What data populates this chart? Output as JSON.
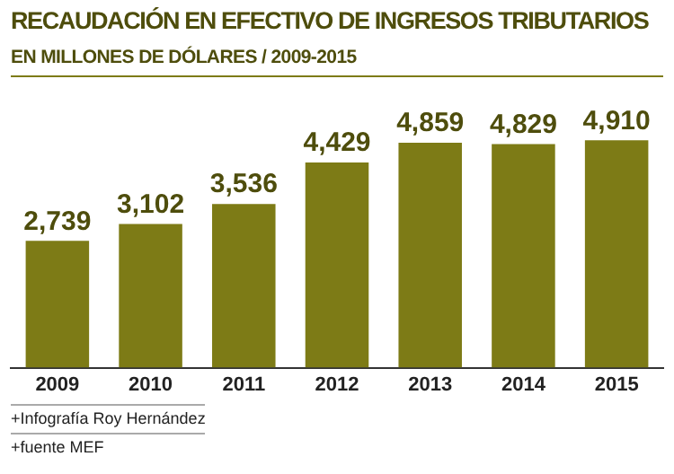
{
  "chart_data": {
    "type": "bar",
    "title": "RECAUDACIÓN EN EFECTIVO DE INGRESOS TRIBUTARIOS",
    "subtitle": "EN MILLONES DE DÓLARES / 2009-2015",
    "categories": [
      "2009",
      "2010",
      "2011",
      "2012",
      "2013",
      "2014",
      "2015"
    ],
    "values": [
      2739,
      3102,
      3536,
      4429,
      4859,
      4829,
      4910
    ],
    "value_labels": [
      "2,739",
      "3,102",
      "3,536",
      "4,429",
      "4,859",
      "4,829",
      "4,910"
    ],
    "color": "#7d7b16",
    "annotations": [
      "+Infografía Roy Hernández",
      "+fuente MEF"
    ]
  }
}
